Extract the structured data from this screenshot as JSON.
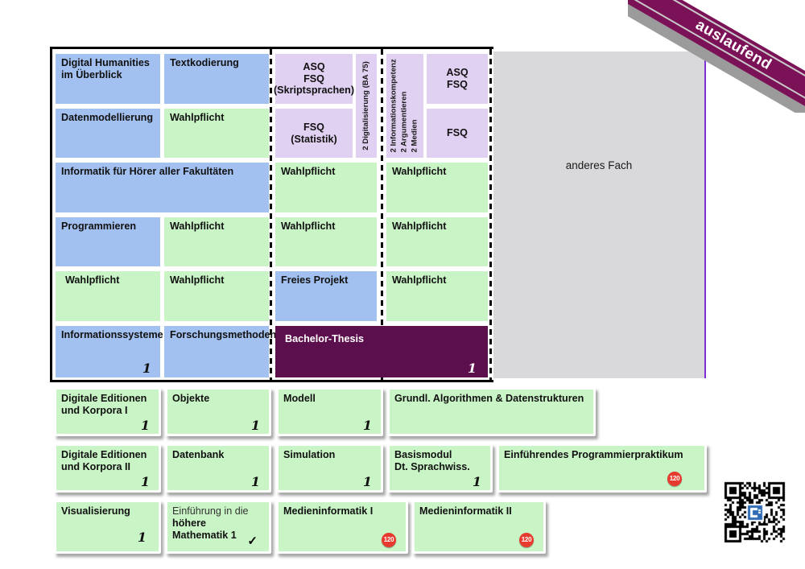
{
  "ribbon": {
    "label": "auslaufend"
  },
  "marks": {
    "score": "1",
    "badge": "120",
    "check": "✓"
  },
  "colors": {
    "module_blue": "#a2c0f0",
    "module_green": "#c9f4c5",
    "module_lavender": "#e0d0f1",
    "thesis_purple": "#5b0f4d",
    "ribbon_purple": "#7b1156",
    "other_subject_gray": "#d9d9db",
    "gray_box_edge_violet": "#7e2fd6",
    "badge_red": "#e63b2e",
    "qr_logo_blue": "#2e6bb4"
  },
  "top": {
    "digital_humanities": "Digital Humanities\nim Überblick",
    "textkodierung": "Textkodierung",
    "asq_fsq_skriptsprachen": "ASQ\nFSQ\n(Skriptsprachen)",
    "digitalisierung": "2 Digitalisierung (BA 75)",
    "schluesselqualifikationen": "2 Informationskompetenz\n2 Argumentieren\n2 Medien",
    "asq_fsq": "ASQ\nFSQ",
    "datenmodellierung": "Datenmodellierung",
    "wahlpflicht": "Wahlpflicht",
    "fsq_statistik": "FSQ\n(Statistik)",
    "fsq": "FSQ",
    "informatik_hoerer": "Informatik für Hörer aller Fakultäten",
    "programmieren": "Programmieren",
    "freies_projekt": "Freies Projekt",
    "informationssysteme": "Informationssysteme",
    "forschungsmethoden": "Forschungsmethoden",
    "bachelor_thesis": "Bachelor-Thesis",
    "anderes_fach": "anderes Fach"
  },
  "bottom_rows": [
    {
      "cells": [
        {
          "label": "Digitale Editionen\nund Korpora I",
          "mark": "1"
        },
        {
          "label": "Objekte",
          "mark": "1"
        },
        {
          "label": "Modell",
          "mark": "1"
        },
        {
          "label": "Grundl. Algorithmen & Datenstrukturen"
        }
      ]
    },
    {
      "cells": [
        {
          "label": "Digitale Editionen\nund Korpora II",
          "mark": "1"
        },
        {
          "label": "Datenbank",
          "mark": "1"
        },
        {
          "label": "Simulation",
          "mark": "1"
        },
        {
          "label": "Basismodul\nDt. Sprachwiss.",
          "mark": "1"
        },
        {
          "label": "Einführendes Programmierpraktikum",
          "badge": "120"
        }
      ]
    },
    {
      "cells": [
        {
          "label": "Visualisierung",
          "mark": "1"
        },
        {
          "label_intro": "Einführung in die",
          "label": "höhere Mathematik 1",
          "check": "✓"
        },
        {
          "label": "Medieninformatik I",
          "badge": "120"
        },
        {
          "label": "Medieninformatik II",
          "badge": "120"
        }
      ]
    }
  ]
}
